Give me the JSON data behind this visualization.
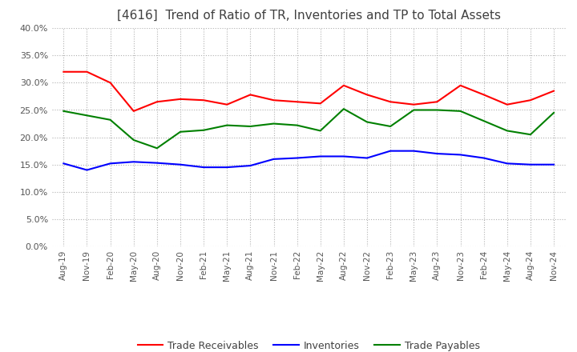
{
  "title": "[4616]  Trend of Ratio of TR, Inventories and TP to Total Assets",
  "x_labels": [
    "Aug-19",
    "Nov-19",
    "Feb-20",
    "May-20",
    "Aug-20",
    "Nov-20",
    "Feb-21",
    "May-21",
    "Aug-21",
    "Nov-21",
    "Feb-22",
    "May-22",
    "Aug-22",
    "Nov-22",
    "Feb-23",
    "May-23",
    "Aug-23",
    "Nov-23",
    "Feb-24",
    "May-24",
    "Aug-24",
    "Nov-24"
  ],
  "trade_receivables": [
    0.32,
    0.32,
    0.3,
    0.248,
    0.265,
    0.27,
    0.268,
    0.26,
    0.278,
    0.268,
    0.265,
    0.262,
    0.295,
    0.278,
    0.265,
    0.26,
    0.265,
    0.295,
    0.278,
    0.26,
    0.268,
    0.285
  ],
  "inventories": [
    0.152,
    0.14,
    0.152,
    0.155,
    0.153,
    0.15,
    0.145,
    0.145,
    0.148,
    0.16,
    0.162,
    0.165,
    0.165,
    0.162,
    0.175,
    0.175,
    0.17,
    0.168,
    0.162,
    0.152,
    0.15,
    0.15
  ],
  "trade_payables": [
    0.248,
    0.24,
    0.232,
    0.195,
    0.18,
    0.21,
    0.213,
    0.222,
    0.22,
    0.225,
    0.222,
    0.212,
    0.252,
    0.228,
    0.22,
    0.25,
    0.25,
    0.248,
    0.23,
    0.212,
    0.205,
    0.245
  ],
  "tr_color": "#ff0000",
  "inv_color": "#0000ff",
  "tp_color": "#008000",
  "ylim": [
    0.0,
    0.4
  ],
  "yticks": [
    0.0,
    0.05,
    0.1,
    0.15,
    0.2,
    0.25,
    0.3,
    0.35,
    0.4
  ],
  "background_color": "#ffffff",
  "grid_color": "#b0b0b0",
  "title_color": "#404040",
  "legend_labels": [
    "Trade Receivables",
    "Inventories",
    "Trade Payables"
  ]
}
